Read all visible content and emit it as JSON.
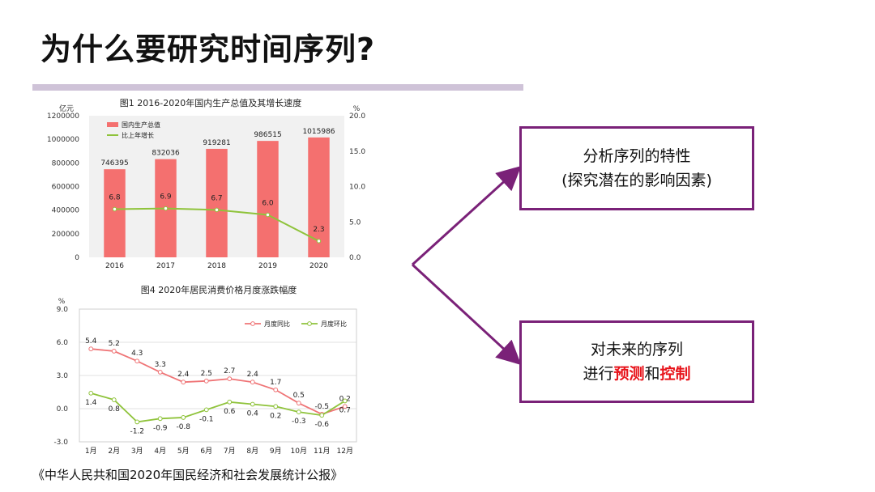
{
  "slide": {
    "title": "为什么要研究时间序列?",
    "source": "《中华人民共和国2020年国民经济和社会发展统计公报》"
  },
  "boxes": {
    "top": {
      "line1": "分析序列的特性",
      "line2": "(探究潜在的影响因素)"
    },
    "bottom": {
      "line1": "对未来的序列",
      "line2_prefix": "进行",
      "predict": "预测",
      "and": "和",
      "control": "控制"
    }
  },
  "colors": {
    "accent": "#7a2178",
    "highlight": "#e8141b",
    "bar": "#f4706f",
    "line_green": "#8fc33b",
    "line_red": "#ef7476"
  },
  "chart_data": [
    {
      "type": "bar",
      "title": "图1  2016-2020年国内生产总值及其增长速度",
      "ylabel_left": "亿元",
      "ylabel_right": "%",
      "categories": [
        "2016",
        "2017",
        "2018",
        "2019",
        "2020"
      ],
      "ylim_left": [
        0,
        1200000
      ],
      "ylim_right": [
        0.0,
        20.0
      ],
      "yticks_left": [
        "1200000",
        "1000000",
        "800000",
        "600000",
        "400000",
        "200000",
        "0"
      ],
      "yticks_right": [
        "20.0",
        "15.0",
        "10.0",
        "5.0",
        "0.0"
      ],
      "series": [
        {
          "name": "国内生产总值",
          "kind": "bar",
          "axis": "left",
          "values": [
            746395,
            832036,
            919281,
            986515,
            1015986
          ],
          "labels": [
            "746395",
            "832036",
            "919281",
            "986515",
            "1015986"
          ]
        },
        {
          "name": "比上年增长",
          "kind": "line",
          "axis": "right",
          "values": [
            6.8,
            6.9,
            6.7,
            6.0,
            2.3
          ],
          "labels": [
            "6.8",
            "6.9",
            "6.7",
            "6.0",
            "2.3"
          ]
        }
      ],
      "legend": "top-left"
    },
    {
      "type": "line",
      "title": "图4  2020年居民消费价格月度涨跌幅度",
      "ylabel": "%",
      "categories": [
        "1月",
        "2月",
        "3月",
        "4月",
        "5月",
        "6月",
        "7月",
        "8月",
        "9月",
        "10月",
        "11月",
        "12月"
      ],
      "ylim": [
        -3.0,
        9.0
      ],
      "yticks": [
        "9.0",
        "6.0",
        "3.0",
        "0.0",
        "-3.0"
      ],
      "series": [
        {
          "name": "月度同比",
          "values": [
            5.4,
            5.2,
            4.3,
            3.3,
            2.4,
            2.5,
            2.7,
            2.4,
            1.7,
            0.5,
            -0.5,
            0.2
          ],
          "labels": [
            "5.4",
            "5.2",
            "4.3",
            "3.3",
            "2.4",
            "2.5",
            "2.7",
            "2.4",
            "1.7",
            "0.5",
            "-0.5",
            "0.2"
          ]
        },
        {
          "name": "月度环比",
          "values": [
            1.4,
            0.8,
            -1.2,
            -0.9,
            -0.8,
            -0.1,
            0.6,
            0.4,
            0.2,
            -0.3,
            -0.6,
            0.7
          ],
          "labels": [
            "1.4",
            "0.8",
            "-1.2",
            "-0.9",
            "-0.8",
            "-0.1",
            "0.6",
            "0.4",
            "0.2",
            "-0.3",
            "-0.6",
            "0.7"
          ]
        }
      ],
      "legend": "top-right"
    }
  ]
}
